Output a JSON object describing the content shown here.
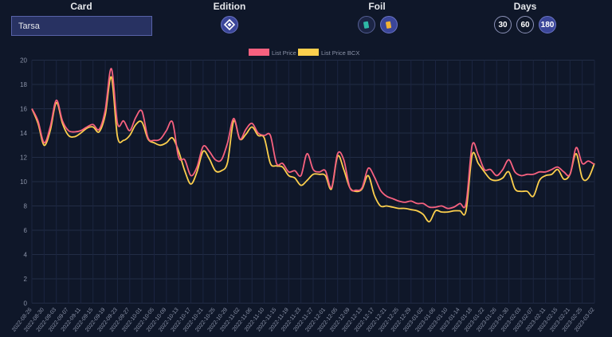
{
  "controls": {
    "card_label": "Card",
    "card_value": "Tarsa",
    "edition_label": "Edition",
    "foil_label": "Foil",
    "days_label": "Days",
    "days_options": [
      "30",
      "60",
      "180"
    ],
    "days_selected": "180",
    "icons": {
      "edition": "edition-diamond-icon",
      "foil_regular": "regular-card-icon",
      "foil_gold": "gold-card-icon"
    }
  },
  "chart_data": {
    "type": "line",
    "title": "",
    "xlabel": "",
    "ylabel": "",
    "ylim": [
      0,
      20
    ],
    "y_ticks": [
      0,
      2,
      4,
      6,
      8,
      10,
      12,
      14,
      16,
      18,
      20
    ],
    "grid": true,
    "legend_position": "top-center",
    "x_tick_labels": [
      "2022-08-26",
      "2022-08-30",
      "2022-09-03",
      "2022-09-07",
      "2022-09-11",
      "2022-09-15",
      "2022-09-19",
      "2022-09-23",
      "2022-09-27",
      "2022-10-01",
      "2022-10-05",
      "2022-10-09",
      "2022-10-13",
      "2022-10-17",
      "2022-10-21",
      "2022-10-25",
      "2022-10-29",
      "2022-11-02",
      "2022-11-06",
      "2022-11-10",
      "2022-11-15",
      "2022-11-19",
      "2022-11-23",
      "2022-11-27",
      "2022-12-01",
      "2022-12-05",
      "2022-12-09",
      "2022-12-13",
      "2022-12-17",
      "2022-12-21",
      "2022-12-25",
      "2022-12-29",
      "2023-01-02",
      "2023-01-06",
      "2023-01-10",
      "2023-01-14",
      "2023-01-18",
      "2023-01-22",
      "2023-01-26",
      "2023-01-30",
      "2023-02-03",
      "2023-02-07",
      "2023-02-11",
      "2023-02-15",
      "2023-02-21",
      "2023-02-25",
      "2023-03-02"
    ],
    "series": [
      {
        "name": "List Price",
        "color": "#f7617f",
        "values": [
          16.0,
          15.0,
          13.2,
          14.5,
          16.7,
          15.0,
          14.2,
          14.1,
          14.2,
          14.5,
          14.7,
          14.3,
          15.9,
          19.3,
          14.8,
          15.0,
          14.2,
          15.3,
          15.8,
          13.6,
          13.4,
          13.5,
          14.2,
          14.9,
          12.0,
          11.8,
          10.5,
          11.2,
          12.9,
          12.5,
          11.8,
          11.8,
          13.2,
          15.2,
          13.5,
          14.3,
          14.8,
          14.0,
          13.8,
          13.8,
          11.5,
          11.5,
          10.8,
          10.9,
          10.5,
          12.3,
          11.0,
          10.8,
          10.9,
          9.5,
          12.3,
          11.8,
          9.5,
          9.3,
          9.5,
          11.1,
          10.4,
          9.3,
          8.8,
          8.6,
          8.4,
          8.3,
          8.4,
          8.2,
          8.2,
          7.9,
          7.9,
          8.0,
          7.8,
          7.9,
          8.2,
          8.2,
          13.0,
          12.2,
          11.0,
          11.0,
          10.5,
          11.0,
          11.8,
          10.8,
          10.5,
          10.6,
          10.6,
          10.8,
          10.8,
          11.0,
          11.2,
          10.8,
          10.6,
          12.8,
          11.5,
          11.7,
          11.4
        ]
      },
      {
        "name": "List Price BCX",
        "color": "#fccf4d",
        "values": [
          16.0,
          14.8,
          13.0,
          14.2,
          16.5,
          14.8,
          13.8,
          13.7,
          14.0,
          14.4,
          14.5,
          14.1,
          15.5,
          18.6,
          13.7,
          13.4,
          13.8,
          14.7,
          14.9,
          13.5,
          13.2,
          13.0,
          13.2,
          13.6,
          12.5,
          10.9,
          9.8,
          10.8,
          12.5,
          11.9,
          10.9,
          10.9,
          11.6,
          15.0,
          13.5,
          13.9,
          14.5,
          13.8,
          13.6,
          11.5,
          11.3,
          11.2,
          10.5,
          10.3,
          9.7,
          10.1,
          10.6,
          10.6,
          10.5,
          9.4,
          12.1,
          11.0,
          9.5,
          9.2,
          9.4,
          10.5,
          8.9,
          8.0,
          8.0,
          7.9,
          7.8,
          7.8,
          7.7,
          7.6,
          7.3,
          6.7,
          7.6,
          7.5,
          7.5,
          7.6,
          7.6,
          7.6,
          12.2,
          11.5,
          10.8,
          10.2,
          10.1,
          10.3,
          10.8,
          9.4,
          9.2,
          9.2,
          8.8,
          10.1,
          10.5,
          10.6,
          11.0,
          10.2,
          10.6,
          12.3,
          10.3,
          10.3,
          11.5
        ]
      }
    ]
  }
}
